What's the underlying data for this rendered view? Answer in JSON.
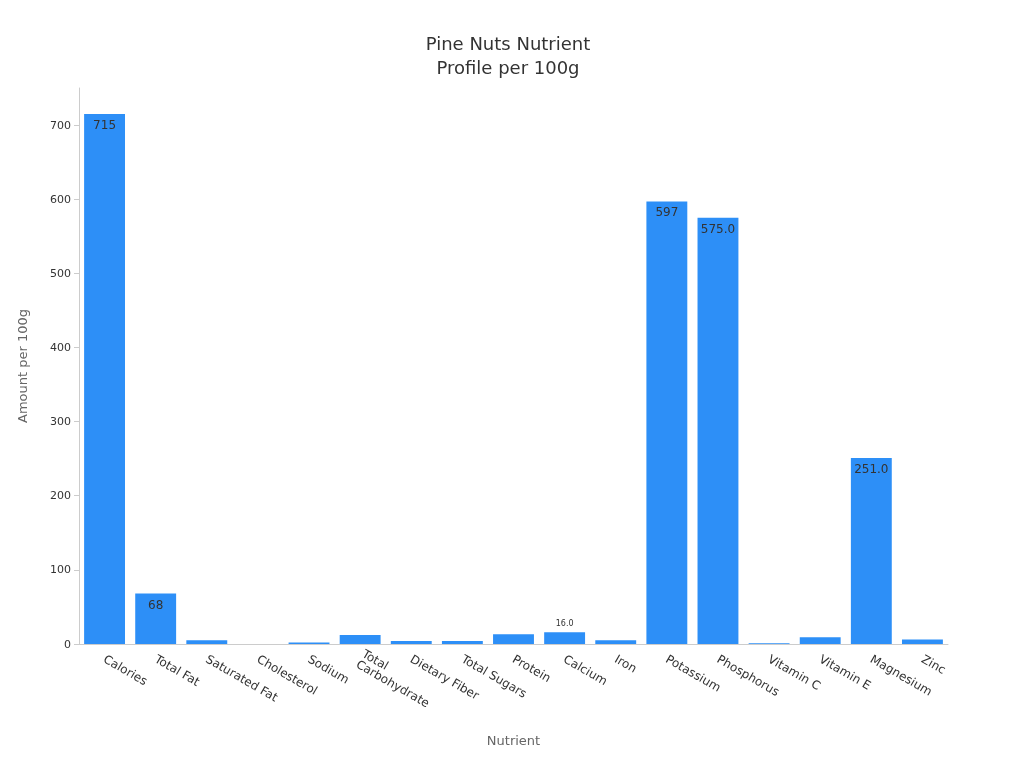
{
  "chart_data": {
    "type": "bar",
    "title": "Pine Nuts Nutrient\nProfile per 100g",
    "xlabel": "Nutrient",
    "ylabel": "Amount per 100g",
    "categories": [
      "Calories",
      "Total Fat",
      "Saturated Fat",
      "Cholesterol",
      "Sodium",
      "Total Carbohydrate",
      "Dietary Fiber",
      "Total Sugars",
      "Protein",
      "Calcium",
      "Iron",
      "Potassium",
      "Phosphorus",
      "Vitamin C",
      "Vitamin E",
      "Magnesium",
      "Zinc"
    ],
    "values": [
      715,
      68,
      5,
      0,
      2,
      12,
      4,
      4,
      13,
      16,
      5,
      597,
      575,
      1,
      9,
      251,
      6
    ],
    "value_labels": [
      "715",
      "68",
      null,
      null,
      null,
      null,
      null,
      null,
      null,
      "16.0",
      null,
      "597",
      "575.0",
      null,
      null,
      "251.0",
      null
    ],
    "color": "#2d8ff7",
    "ylim": [
      0,
      750
    ],
    "yticks": [
      0,
      100,
      200,
      300,
      400,
      500,
      600,
      700
    ],
    "grid": false
  }
}
